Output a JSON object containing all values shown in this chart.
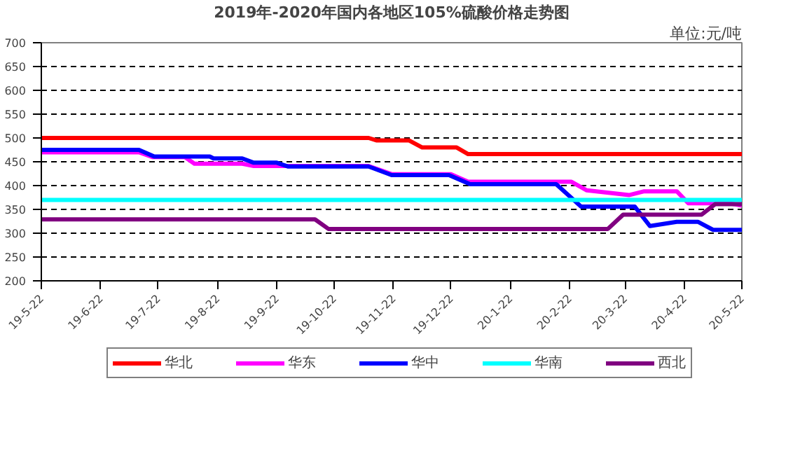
{
  "chart_data": {
    "type": "line",
    "title": "2019年-2020年国内各地区105%硫酸价格走势图",
    "annotations": [
      "单位:元/吨"
    ],
    "xlim": [
      "2019-05-22",
      "2020-05-22"
    ],
    "xticks": [
      {
        "value": "2019-05-22",
        "label": "19-5-22"
      },
      {
        "value": "2019-06-22",
        "label": "19-6-22"
      },
      {
        "value": "2019-07-22",
        "label": "19-7-22"
      },
      {
        "value": "2019-08-22",
        "label": "19-8-22"
      },
      {
        "value": "2019-09-22",
        "label": "19-9-22"
      },
      {
        "value": "2019-10-22",
        "label": "19-10-22"
      },
      {
        "value": "2019-11-22",
        "label": "19-11-22"
      },
      {
        "value": "2019-12-22",
        "label": "19-12-22"
      },
      {
        "value": "2020-01-22",
        "label": "20-1-22"
      },
      {
        "value": "2020-02-22",
        "label": "20-2-22"
      },
      {
        "value": "2020-03-22",
        "label": "20-3-22"
      },
      {
        "value": "2020-04-22",
        "label": "20-4-22"
      },
      {
        "value": "2020-05-22",
        "label": "20-5-22"
      }
    ],
    "ylim": [
      200,
      700
    ],
    "yticks": [
      200,
      250,
      300,
      350,
      400,
      450,
      500,
      550,
      600,
      650,
      700
    ],
    "grid": "y",
    "legend": "bottom",
    "marker": "none",
    "line_style": "solid",
    "series": [
      {
        "name": "华北",
        "color": "#ff0000",
        "x": [
          "2019-05-22",
          "2019-11-09",
          "2019-11-13",
          "2019-11-30",
          "2019-12-07",
          "2019-12-25",
          "2019-12-31",
          "2020-05-22"
        ],
        "values": [
          500,
          500,
          495,
          495,
          480,
          480,
          466,
          466
        ]
      },
      {
        "name": "华东",
        "color": "#ff00ff",
        "x": [
          "2019-05-22",
          "2019-07-12",
          "2019-07-19",
          "2019-08-05",
          "2019-08-10",
          "2019-09-04",
          "2019-09-10",
          "2019-11-09",
          "2019-11-21",
          "2019-12-22",
          "2019-12-31",
          "2020-02-23",
          "2020-03-02",
          "2020-03-24",
          "2020-04-01",
          "2020-04-18",
          "2020-04-24",
          "2020-05-15",
          "2020-05-22"
        ],
        "values": [
          470,
          470,
          460,
          460,
          446,
          446,
          441,
          441,
          424,
          424,
          408,
          408,
          390,
          380,
          388,
          388,
          363,
          363,
          358
        ]
      },
      {
        "name": "华中",
        "color": "#0000ff",
        "x": [
          "2019-05-22",
          "2019-07-12",
          "2019-07-20",
          "2019-08-18",
          "2019-08-20",
          "2019-09-04",
          "2019-09-10",
          "2019-09-22",
          "2019-09-28",
          "2019-11-09",
          "2019-11-21",
          "2019-12-21",
          "2020-01-01",
          "2020-02-15",
          "2020-02-28",
          "2020-03-27",
          "2020-04-04",
          "2020-04-18",
          "2020-04-29",
          "2020-05-07",
          "2020-05-22"
        ],
        "values": [
          475,
          475,
          461,
          461,
          457,
          457,
          448,
          448,
          440,
          440,
          422,
          422,
          403,
          403,
          356,
          356,
          315,
          324,
          324,
          307,
          307
        ]
      },
      {
        "name": "华南",
        "color": "#00ffff",
        "x": [
          "2019-05-22",
          "2020-05-22"
        ],
        "values": [
          370,
          370
        ]
      },
      {
        "name": "西北",
        "color": "#800080",
        "x": [
          "2019-05-22",
          "2019-10-12",
          "2019-10-19",
          "2020-03-13",
          "2020-03-21",
          "2020-05-01",
          "2020-05-08",
          "2020-05-22"
        ],
        "values": [
          329,
          329,
          309,
          309,
          339,
          339,
          361,
          361
        ]
      }
    ]
  }
}
